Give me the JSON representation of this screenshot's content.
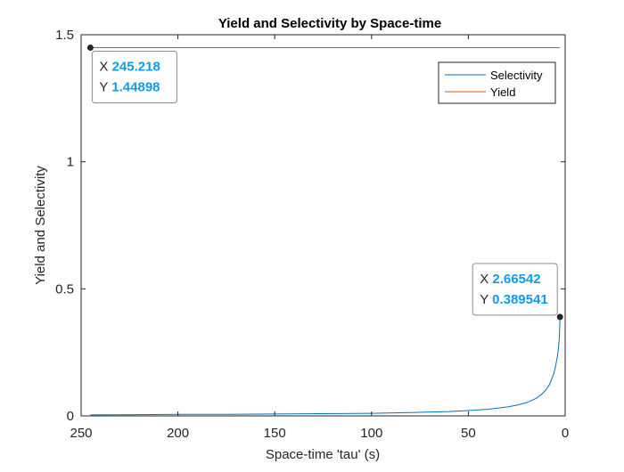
{
  "chart_data": {
    "type": "line",
    "title": "Yield and Selectivity by Space-time",
    "xlabel": "Space-time 'tau' (s)",
    "ylabel": "Yield and Selectivity",
    "xlim": [
      250,
      0
    ],
    "x_reversed": true,
    "ylim": [
      0,
      1.5
    ],
    "xticks": [
      250,
      200,
      150,
      100,
      50,
      0
    ],
    "xtick_labels": [
      "250",
      "200",
      "150",
      "100",
      "50",
      "0"
    ],
    "yticks": [
      0,
      0.5,
      1,
      1.5
    ],
    "ytick_labels": [
      "0",
      "0.5",
      "1",
      "1.5"
    ],
    "grid": false,
    "legend_position": "top-right",
    "series": [
      {
        "name": "Selectivity",
        "color": "#0072BD",
        "x": [
          245.218,
          220,
          200,
          180,
          160,
          140,
          120,
          100,
          80,
          60,
          50,
          40,
          30,
          25,
          20,
          15,
          12,
          10,
          8,
          6,
          5,
          4,
          3.5,
          3,
          2.66542
        ],
        "y": [
          0.004,
          0.005,
          0.006,
          0.006,
          0.007,
          0.008,
          0.009,
          0.01,
          0.013,
          0.017,
          0.021,
          0.026,
          0.035,
          0.042,
          0.052,
          0.069,
          0.086,
          0.102,
          0.125,
          0.163,
          0.193,
          0.235,
          0.265,
          0.307,
          0.389541
        ]
      },
      {
        "name": "Yield",
        "color": "#D95319",
        "x": [
          245.218,
          2.66542
        ],
        "y": [
          1.44898,
          1.44898
        ]
      }
    ],
    "datatips": [
      {
        "x": 245.218,
        "y": 1.44898,
        "x_label": "X",
        "y_label": "Y",
        "x_text": "245.218",
        "y_text": "1.44898",
        "anchor": "upper-left"
      },
      {
        "x": 2.66542,
        "y": 0.389541,
        "x_label": "X",
        "y_label": "Y",
        "x_text": "2.66542",
        "y_text": "0.389541",
        "anchor": "lower-right"
      }
    ]
  }
}
